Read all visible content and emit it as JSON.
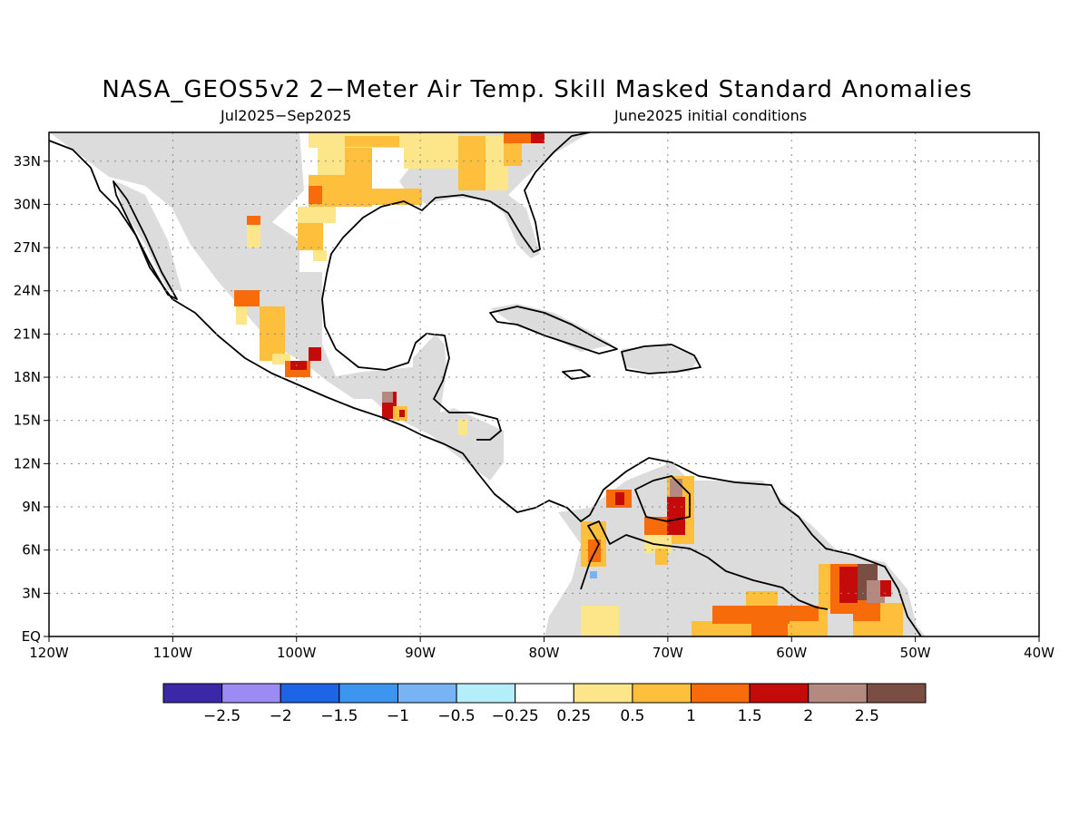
{
  "title": "NASA_GEOS5v2 2−Meter Air Temp. Skill Masked Standard Anomalies",
  "subtitle_left": "Jul2025−Sep2025",
  "subtitle_right": "June2025 initial conditions",
  "map": {
    "lon_range": [
      -120,
      -40
    ],
    "lat_range": [
      0,
      35
    ],
    "lon_ticks": [
      "120W",
      "110W",
      "100W",
      "90W",
      "80W",
      "70W",
      "60W",
      "50W",
      "40W"
    ],
    "lat_ticks": [
      "EQ",
      "3N",
      "6N",
      "9N",
      "12N",
      "15N",
      "18N",
      "21N",
      "24N",
      "27N",
      "30N",
      "33N"
    ],
    "gridlines": "dotted",
    "colors": {
      "masked_gray": "#dcdcdc",
      "land_outline": "#000000"
    }
  },
  "colorbar": {
    "colors": [
      "#3a28a8",
      "#9b8bf2",
      "#1e64e6",
      "#3c96f0",
      "#78b4f5",
      "#b4eefa",
      "#ffffff",
      "#fde68a",
      "#fdbf3c",
      "#f86b0a",
      "#c50a0a",
      "#b48a80",
      "#7a4e43"
    ],
    "labels": [
      "−2.5",
      "−2",
      "−1.5",
      "−1",
      "−0.5",
      "−0.25",
      "0.25",
      "0.5",
      "1",
      "1.5",
      "2",
      "2.5"
    ]
  }
}
